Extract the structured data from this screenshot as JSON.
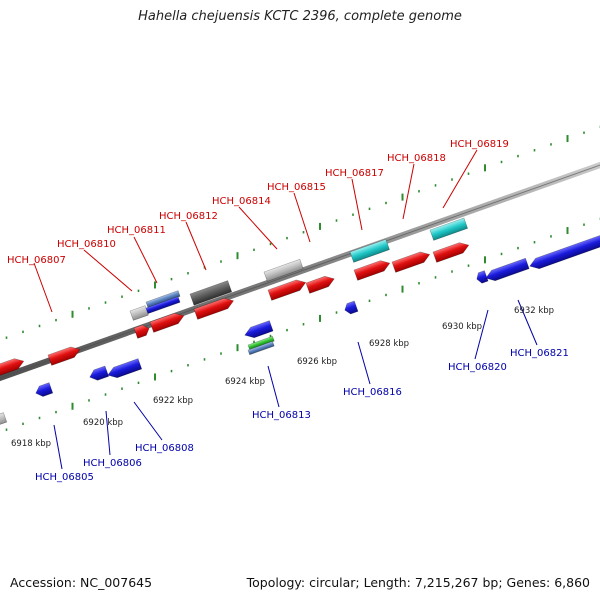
{
  "title": "Hahella chejuensis KCTC 2396, complete genome",
  "footer": {
    "accession": "Accession: NC_007645",
    "summary": "Topology: circular; Length: 7,215,267 bp; Genes: 6,860"
  },
  "colors": {
    "backbone": "#8a8a8a",
    "tick": "#2e8b2e",
    "forward_gene": "#e01010",
    "reverse_gene": "#1a1adc",
    "forward_label": "#cc0000",
    "reverse_label": "#0000aa",
    "cyan_feature": "#20c8c8",
    "grey_feature": "#bdbdbd",
    "dark_feature": "#5a5a5a"
  },
  "kbp_labels": [
    "6918 kbp",
    "6920 kbp",
    "6922 kbp",
    "6924 kbp",
    "6926 kbp",
    "6928 kbp",
    "6930 kbp",
    "6932 kbp"
  ],
  "forward_gene_labels": [
    "HCH_06807",
    "HCH_06810",
    "HCH_06811",
    "HCH_06812",
    "HCH_06814",
    "HCH_06815",
    "HCH_06817",
    "HCH_06818",
    "HCH_06819"
  ],
  "reverse_gene_labels": [
    "HCH_06805",
    "HCH_06806",
    "HCH_06808",
    "HCH_06813",
    "HCH_06816",
    "HCH_06820",
    "HCH_06821"
  ]
}
